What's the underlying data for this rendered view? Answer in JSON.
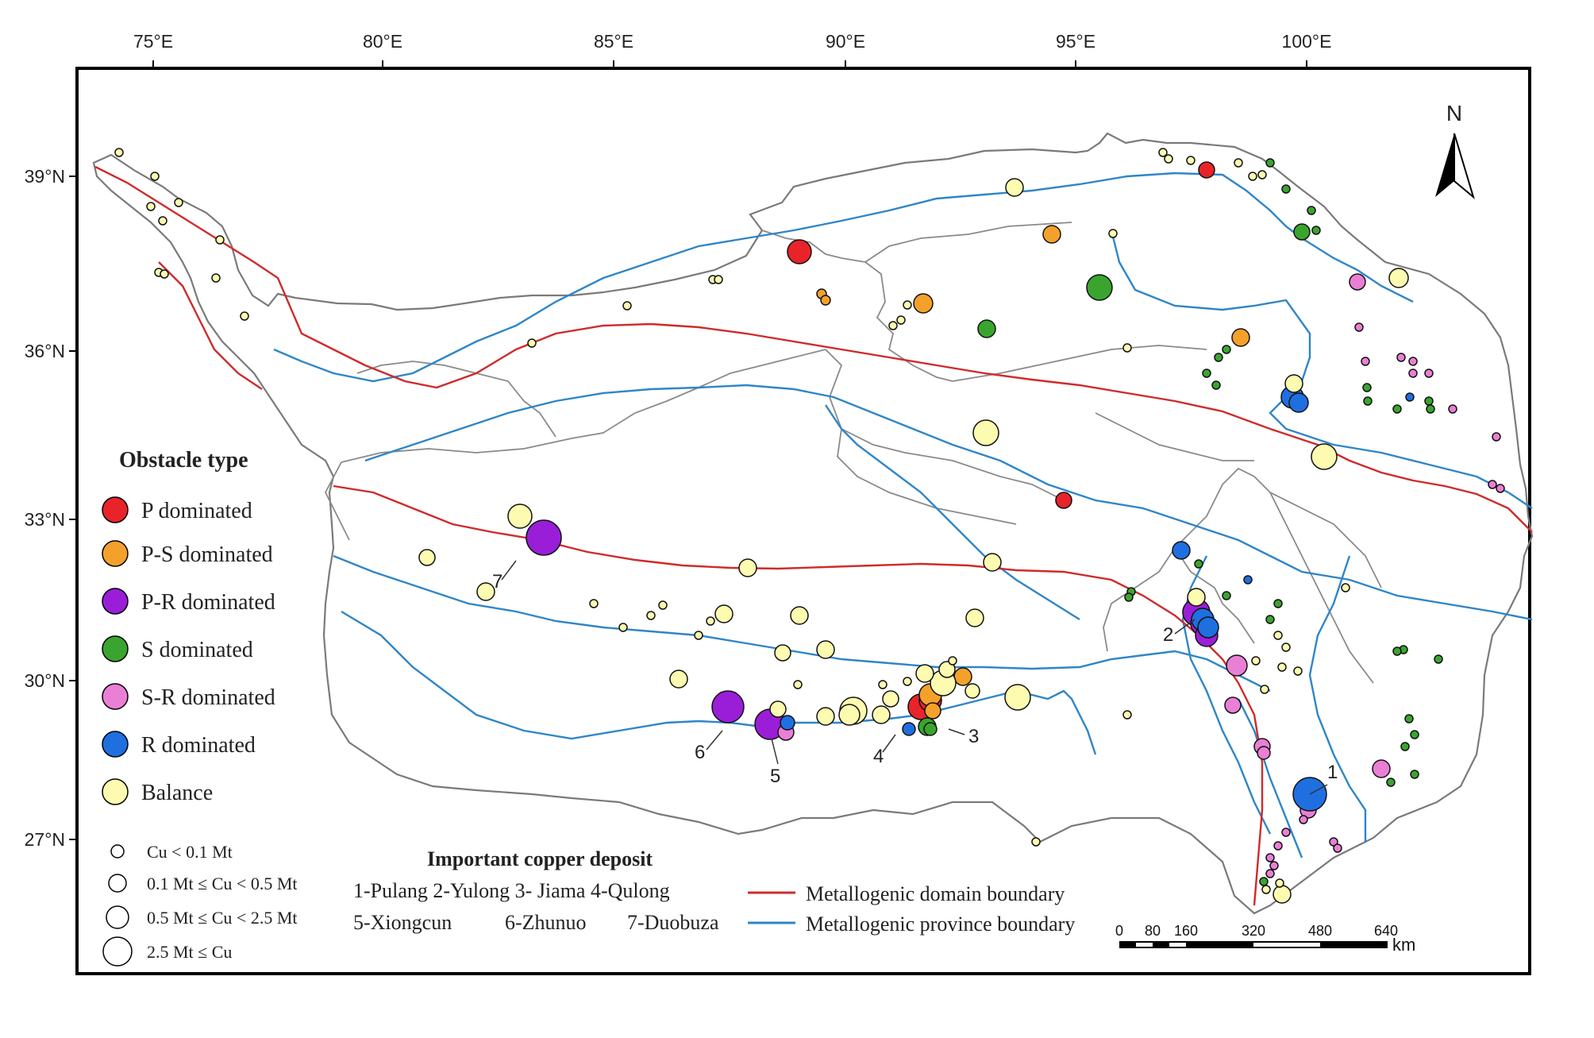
{
  "axes": {
    "lon_ticks": [
      "75°E",
      "80°E",
      "85°E",
      "90°E",
      "95°E",
      "100°E"
    ],
    "lat_ticks": [
      "39°N",
      "36°N",
      "33°N",
      "30°N",
      "27°N"
    ]
  },
  "north_label": "N",
  "legend": {
    "title": "Obstacle type",
    "items": [
      {
        "label": "P  dominated",
        "color": "#e8232a"
      },
      {
        "label": "P-S  dominated",
        "color": "#f4a12b"
      },
      {
        "label": "P-R  dominated",
        "color": "#9a1ed8"
      },
      {
        "label": "S  dominated",
        "color": "#3aa52e"
      },
      {
        "label": "S-R  dominated",
        "color": "#ea7fd6"
      },
      {
        "label": "R  dominated",
        "color": "#1f6fe0"
      },
      {
        "label": "Balance",
        "color": "#fdfbb0"
      }
    ],
    "size_classes": [
      "Cu < 0.1 Mt",
      "0.1 Mt ≤ Cu < 0.5 Mt",
      "0.5 Mt ≤ Cu < 2.5 Mt",
      "2.5 Mt ≤ Cu"
    ]
  },
  "deposits": {
    "title": "Important copper deposit",
    "line1": "1-Pulang  2-Yulong  3- Jiama  4-Qulong",
    "line2a": "5-Xiongcun",
    "line2b": "6-Zhunuo",
    "line2c": "7-Duobuza",
    "numbers": [
      "1",
      "2",
      "3",
      "4",
      "5",
      "6",
      "7"
    ]
  },
  "boundaries": {
    "domain_label": "Metallogenic domain boundary",
    "domain_color": "#cf2b2b",
    "province_label": "Metallogenic province boundary",
    "province_color": "#2f86c8"
  },
  "scale_bar": {
    "ticks": [
      "0",
      "80",
      "160",
      "320",
      "480",
      "640"
    ],
    "unit": "km"
  },
  "colors": {
    "P": "#e8232a",
    "PS": "#f4a12b",
    "PR": "#9a1ed8",
    "S": "#3aa52e",
    "SR": "#ea7fd6",
    "R": "#1f6fe0",
    "B": "#fdfbb0"
  }
}
